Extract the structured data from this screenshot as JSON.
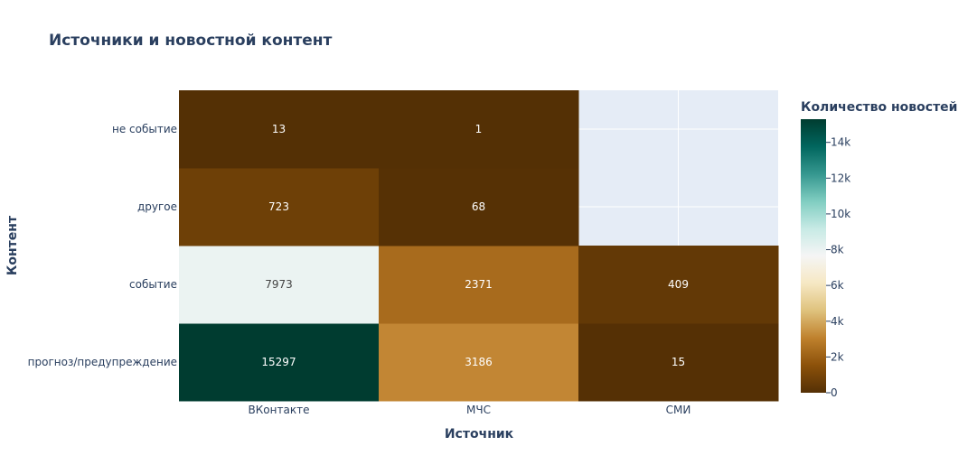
{
  "chart_data": {
    "type": "heatmap",
    "title": "Источники и новостной контент",
    "xlabel": "Источник",
    "ylabel": "Контент",
    "x_categories": [
      "ВКонтакте",
      "МЧС",
      "СМИ"
    ],
    "y_categories": [
      "прогноз/предупреждение",
      "событие",
      "другое",
      "не событие"
    ],
    "values": [
      [
        15297,
        3186,
        15
      ],
      [
        7973,
        2371,
        409
      ],
      [
        723,
        68,
        null
      ],
      [
        13,
        1,
        null
      ]
    ],
    "colorbar": {
      "title": "Количество новостей",
      "range": [
        0,
        15297
      ],
      "ticks": [
        0,
        2000,
        4000,
        6000,
        8000,
        10000,
        12000,
        14000
      ],
      "tick_labels": [
        "0",
        "2k",
        "4k",
        "6k",
        "8k",
        "10k",
        "12k",
        "14k"
      ],
      "colorscale": [
        "#543005",
        "#8c510a",
        "#bf812d",
        "#dfc27d",
        "#f6e8c3",
        "#f5f5f5",
        "#c7eae5",
        "#80cdc1",
        "#35978f",
        "#01665e",
        "#003c30"
      ]
    },
    "missing_color": "#e5ecf6",
    "grid": true
  }
}
